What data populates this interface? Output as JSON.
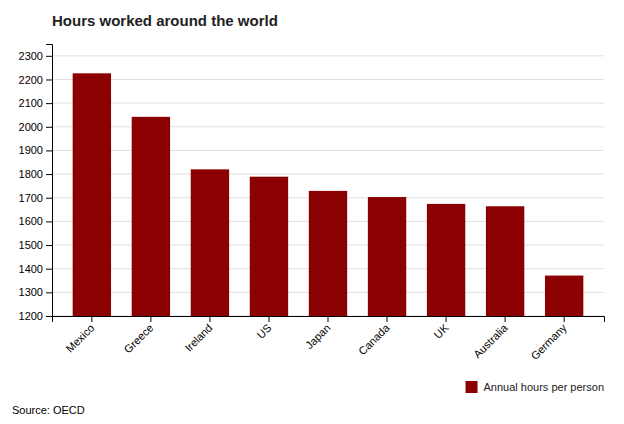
{
  "chart_data": {
    "type": "bar",
    "title": "Hours worked around the world",
    "categories": [
      "Mexico",
      "Greece",
      "Ireland",
      "US",
      "Japan",
      "Canada",
      "UK",
      "Australia",
      "Germany"
    ],
    "series": [
      {
        "name": "Annual hours per person",
        "color": "#8B0000",
        "values": [
          2226,
          2042,
          1820,
          1789,
          1729,
          1703,
          1674,
          1664,
          1371
        ]
      }
    ],
    "ylim": [
      1200,
      2350
    ],
    "yticks": [
      1200,
      1300,
      1400,
      1500,
      1600,
      1700,
      1800,
      1900,
      2000,
      2100,
      2200,
      2300
    ],
    "grid": true,
    "legend": "lower right",
    "annotations": [
      "Source: OECD"
    ]
  }
}
